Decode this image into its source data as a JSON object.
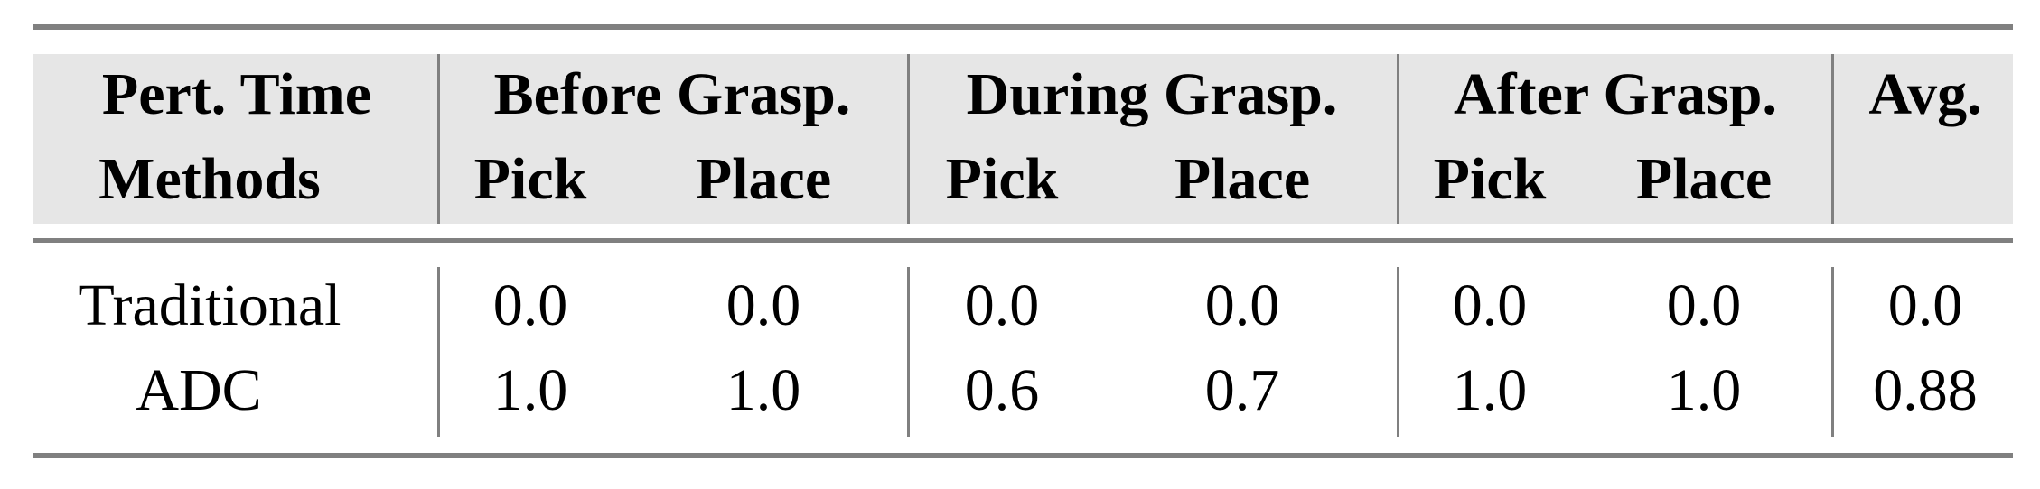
{
  "header": {
    "row1": [
      "Pert. Time",
      "Before Grasp.",
      "During Grasp.",
      "After Grasp.",
      "Avg."
    ],
    "row2": [
      "Methods",
      "Pick",
      "Place",
      "Pick",
      "Place",
      "Pick",
      "Place",
      ""
    ]
  },
  "rows": [
    {
      "method": "Traditional",
      "values": [
        "0.0",
        "0.0",
        "0.0",
        "0.0",
        "0.0",
        "0.0",
        "0.0"
      ]
    },
    {
      "method": "ADC",
      "values": [
        "1.0",
        "1.0",
        "0.6",
        "0.7",
        "1.0",
        "1.0",
        "0.88"
      ]
    }
  ],
  "colors": {
    "rule": "#808080",
    "header_background": "#e6e6e6"
  }
}
